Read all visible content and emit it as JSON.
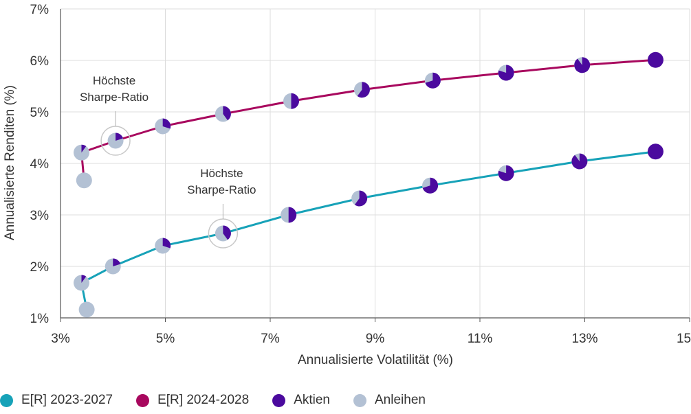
{
  "colors": {
    "series_2023": "#17a2b8",
    "series_2024": "#a8085e",
    "aktien": "#4b0a9e",
    "anleihen": "#b3c1d4",
    "grid": "#dcdcdc",
    "axis": "#555555"
  },
  "legend": {
    "items": [
      {
        "label": "E[R] 2023-2027",
        "color_key": "series_2023"
      },
      {
        "label": "E[R] 2024-2028",
        "color_key": "series_2024"
      },
      {
        "label": "Aktien",
        "color_key": "aktien"
      },
      {
        "label": "Anleihen",
        "color_key": "anleihen"
      }
    ]
  },
  "chart_data": {
    "type": "scatter",
    "title": "",
    "xlabel": "Annualisierte Volatilität (%)",
    "ylabel": "Annualisierte Renditen (%)",
    "xlim": [
      3,
      15
    ],
    "ylim": [
      1,
      7
    ],
    "x_ticks": [
      3,
      5,
      7,
      9,
      11,
      13,
      15
    ],
    "x_tick_labels": [
      "3%",
      "5%",
      "7%",
      "9%",
      "11%",
      "13%",
      "15%"
    ],
    "y_ticks": [
      1,
      2,
      3,
      4,
      5,
      6,
      7
    ],
    "y_tick_labels": [
      "1%",
      "2%",
      "3%",
      "4%",
      "5%",
      "6%",
      "7%"
    ],
    "grid": true,
    "series": [
      {
        "name": "E[R] 2024-2028",
        "color_key": "series_2024",
        "points": [
          {
            "x": 3.45,
            "y": 3.67,
            "aktien": 0.0
          },
          {
            "x": 3.4,
            "y": 4.21,
            "aktien": 0.1
          },
          {
            "x": 4.05,
            "y": 4.44,
            "aktien": 0.2
          },
          {
            "x": 4.95,
            "y": 4.72,
            "aktien": 0.3
          },
          {
            "x": 6.1,
            "y": 4.96,
            "aktien": 0.4
          },
          {
            "x": 7.4,
            "y": 5.21,
            "aktien": 0.5
          },
          {
            "x": 8.75,
            "y": 5.43,
            "aktien": 0.6
          },
          {
            "x": 10.1,
            "y": 5.61,
            "aktien": 0.7
          },
          {
            "x": 11.5,
            "y": 5.76,
            "aktien": 0.8
          },
          {
            "x": 12.95,
            "y": 5.91,
            "aktien": 0.9
          },
          {
            "x": 14.35,
            "y": 6.01,
            "aktien": 1.0
          }
        ]
      },
      {
        "name": "E[R] 2023-2027",
        "color_key": "series_2023",
        "points": [
          {
            "x": 3.5,
            "y": 1.16,
            "aktien": 0.0
          },
          {
            "x": 3.4,
            "y": 1.68,
            "aktien": 0.1
          },
          {
            "x": 4.0,
            "y": 2.0,
            "aktien": 0.2
          },
          {
            "x": 4.95,
            "y": 2.4,
            "aktien": 0.3
          },
          {
            "x": 6.1,
            "y": 2.64,
            "aktien": 0.4
          },
          {
            "x": 7.35,
            "y": 3.0,
            "aktien": 0.5
          },
          {
            "x": 8.7,
            "y": 3.32,
            "aktien": 0.6
          },
          {
            "x": 10.05,
            "y": 3.57,
            "aktien": 0.7
          },
          {
            "x": 11.5,
            "y": 3.81,
            "aktien": 0.8
          },
          {
            "x": 12.9,
            "y": 4.04,
            "aktien": 0.9
          },
          {
            "x": 14.35,
            "y": 4.23,
            "aktien": 1.0
          }
        ]
      }
    ],
    "annotations": [
      {
        "lines": [
          "Höchste",
          "Sharpe-Ratio"
        ],
        "series": "E[R] 2024-2028",
        "point_index": 2
      },
      {
        "lines": [
          "Höchste",
          "Sharpe-Ratio"
        ],
        "series": "E[R] 2023-2027",
        "point_index": 4
      }
    ]
  }
}
